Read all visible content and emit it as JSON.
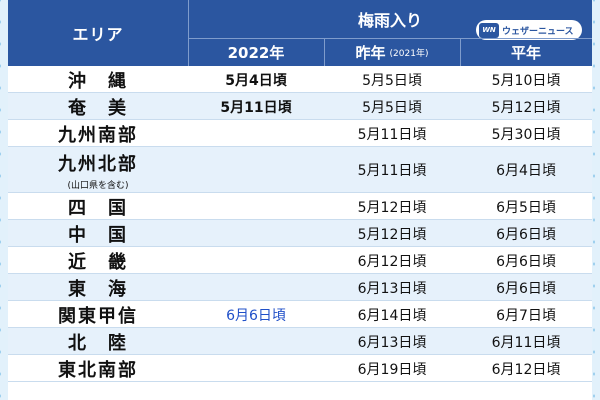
{
  "header": {
    "area_label": "エリア",
    "group_label": "梅雨入り",
    "col_2022": "2022年",
    "col_last": "昨年",
    "col_last_note": "(2021年)",
    "col_normal": "平年",
    "brand_logo": "WN",
    "brand_name": "ウェザーニュース"
  },
  "rows": [
    {
      "area": "沖　縄",
      "note": "",
      "y2022": "5月4日頃",
      "last": "5月5日頃",
      "normal": "5月10日頃"
    },
    {
      "area": "奄　美",
      "note": "",
      "y2022": "5月11日頃",
      "last": "5月5日頃",
      "normal": "5月12日頃"
    },
    {
      "area": "九州南部",
      "note": "",
      "y2022": "",
      "last": "5月11日頃",
      "normal": "5月30日頃"
    },
    {
      "area": "九州北部",
      "note": "(山口県を含む)",
      "y2022": "",
      "last": "5月11日頃",
      "normal": "6月4日頃"
    },
    {
      "area": "四　国",
      "note": "",
      "y2022": "",
      "last": "5月12日頃",
      "normal": "6月5日頃"
    },
    {
      "area": "中　国",
      "note": "",
      "y2022": "",
      "last": "5月12日頃",
      "normal": "6月6日頃"
    },
    {
      "area": "近　畿",
      "note": "",
      "y2022": "",
      "last": "6月12日頃",
      "normal": "6月6日頃"
    },
    {
      "area": "東　海",
      "note": "",
      "y2022": "",
      "last": "6月13日頃",
      "normal": "6月6日頃"
    },
    {
      "area": "関東甲信",
      "note": "",
      "y2022": "6月6日頃",
      "last": "6月14日頃",
      "normal": "6月7日頃"
    },
    {
      "area": "北　陸",
      "note": "",
      "y2022": "",
      "last": "6月13日頃",
      "normal": "6月11日頃"
    },
    {
      "area": "東北南部",
      "note": "",
      "y2022": "",
      "last": "6月19日頃",
      "normal": "6月12日頃"
    }
  ]
}
